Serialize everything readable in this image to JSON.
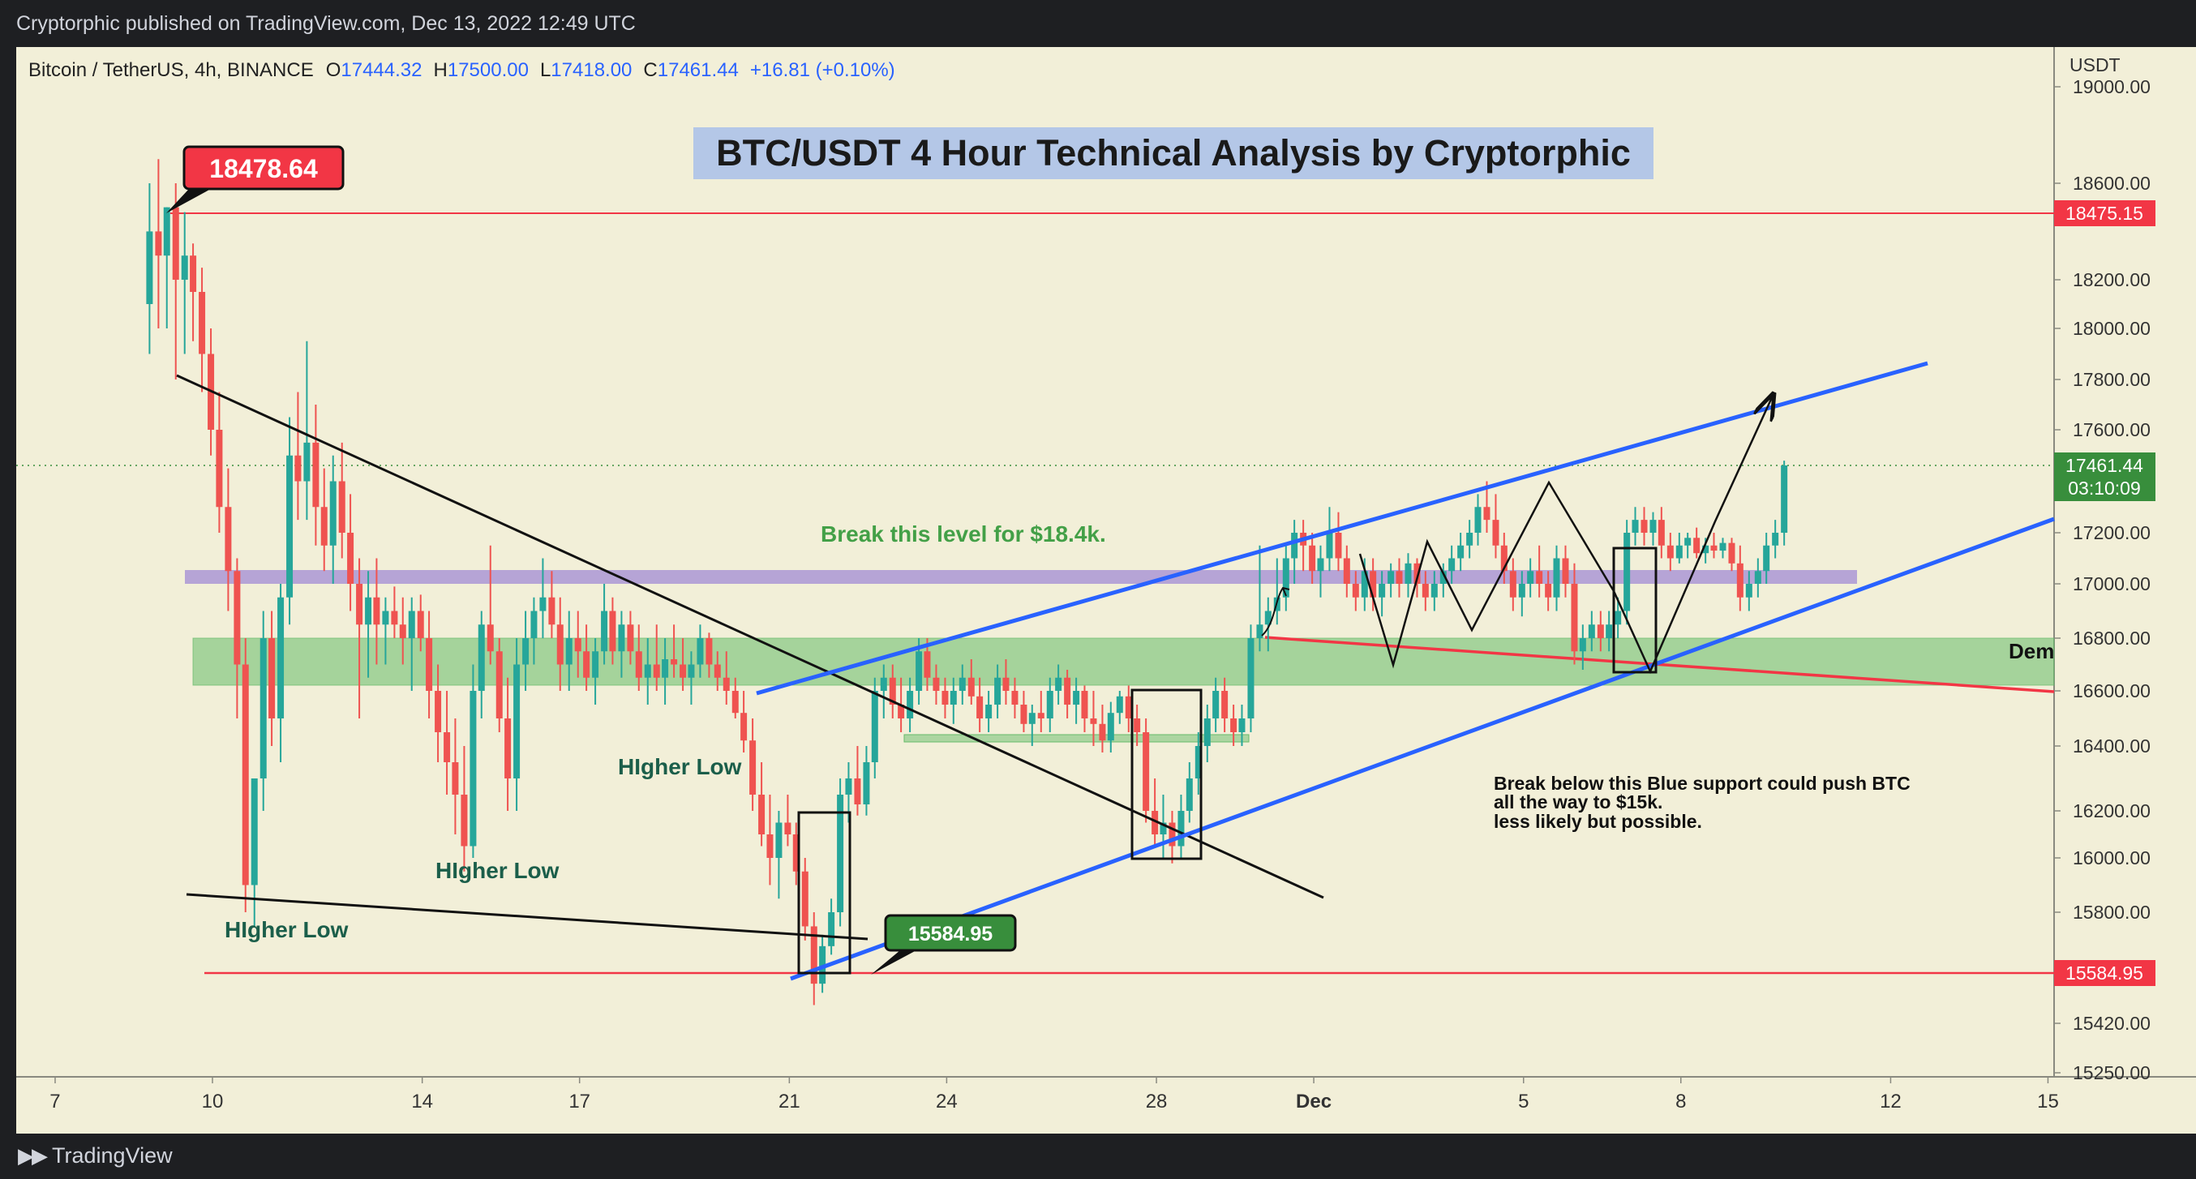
{
  "header": {
    "published": "Cryptorphic published on TradingView.com, Dec 13, 2022 12:49 UTC"
  },
  "footer": {
    "brand": "TradingView"
  },
  "legend": {
    "symbol": "Bitcoin / TetherUS, 4h, BINANCE",
    "o_label": "O",
    "o": "17444.32",
    "h_label": "H",
    "h": "17500.00",
    "l_label": "L",
    "l": "17418.00",
    "c_label": "C",
    "c": "17461.44",
    "change": "+16.81 (+0.10%)"
  },
  "colors": {
    "up": "#26a69a",
    "down": "#ef5350",
    "background": "#f2efd8",
    "blue_line": "#2962ff",
    "red_line": "#f23645",
    "green_zone": "#66bb6a",
    "purple_zone": "#9c84d6"
  },
  "chart_data": {
    "type": "candlestick",
    "title": "BTC/USDT 4 Hour Technical Analysis by Cryptorphic",
    "y_unit": "USDT",
    "ylim": [
      15250,
      19050
    ],
    "y_ticks": [
      "19000.00",
      "18600.00",
      "18200.00",
      "18000.00",
      "17800.00",
      "17600.00",
      "17200.00",
      "17000.00",
      "16800.00",
      "16600.00",
      "16400.00",
      "16200.00",
      "16000.00",
      "15800.00",
      "15420.00",
      "15250.00"
    ],
    "x_ticks": [
      "7",
      "10",
      "14",
      "17",
      "21",
      "24",
      "28",
      "Dec",
      "5",
      "8",
      "12",
      "15"
    ],
    "x_tick_pos": [
      -3,
      0,
      4,
      7,
      11,
      14,
      18,
      21,
      25,
      28,
      32,
      35
    ],
    "xlim": [
      -3.3,
      35.05
    ],
    "price_labels": [
      {
        "value": 18475.15,
        "text": "18475.15",
        "color": "#f23645"
      },
      {
        "value": 17461.44,
        "text": "17461.44",
        "sub": "03:10:09",
        "color": "#388e3c"
      },
      {
        "value": 15584.95,
        "text": "15584.95",
        "color": "#f23645"
      }
    ],
    "callouts": [
      {
        "text": "18478.64",
        "color": "#f23645",
        "x": 0.2,
        "y": 18478.64
      },
      {
        "text": "15584.95",
        "color": "#388e3c",
        "x": 11.9,
        "y": 15584.95
      }
    ],
    "annotations": {
      "break_level": "Break this level for $18.4k.",
      "higher_low_1": "HIgher Low",
      "higher_low_2": "HIgher Low",
      "higher_low_3": "HIgher Low",
      "support_warning_1": "Break below this Blue support could push BTC",
      "support_warning_2": "all the way to $15k.",
      "support_warning_3": "less likely but possible.",
      "demand_zone": "Dem"
    },
    "candles": [
      [
        -1.2,
        18100,
        18600,
        17900,
        18400
      ],
      [
        -1.03,
        18400,
        18700,
        18000,
        18300
      ],
      [
        -0.87,
        18300,
        18500,
        18000,
        18500
      ],
      [
        -0.7,
        18500,
        18600,
        17800,
        18200
      ],
      [
        -0.53,
        18200,
        18480,
        17900,
        18300
      ],
      [
        -0.37,
        18300,
        18350,
        17950,
        18150
      ],
      [
        -0.2,
        18150,
        18250,
        17750,
        17900
      ],
      [
        -0.03,
        17900,
        18000,
        17500,
        17600
      ],
      [
        0.13,
        17600,
        17750,
        17200,
        17300
      ],
      [
        0.3,
        17300,
        17450,
        16900,
        17050
      ],
      [
        0.47,
        17050,
        17100,
        16500,
        16700
      ],
      [
        0.63,
        16700,
        16800,
        15800,
        15900
      ],
      [
        0.8,
        15900,
        16300,
        15750,
        16300
      ],
      [
        0.97,
        16300,
        16900,
        16200,
        16800
      ],
      [
        1.13,
        16800,
        16900,
        16400,
        16500
      ],
      [
        1.3,
        16500,
        17000,
        16350,
        16950
      ],
      [
        1.47,
        16950,
        17650,
        16850,
        17500
      ],
      [
        1.63,
        17500,
        17750,
        17250,
        17400
      ],
      [
        1.8,
        17400,
        17950,
        17250,
        17550
      ],
      [
        1.97,
        17550,
        17700,
        17150,
        17300
      ],
      [
        2.13,
        17300,
        17450,
        17050,
        17150
      ],
      [
        2.3,
        17150,
        17500,
        17000,
        17400
      ],
      [
        2.47,
        17400,
        17550,
        17100,
        17200
      ],
      [
        2.63,
        17200,
        17350,
        16900,
        17000
      ],
      [
        2.8,
        17000,
        17100,
        16500,
        16850
      ],
      [
        2.97,
        16850,
        17050,
        16650,
        16950
      ],
      [
        3.13,
        16950,
        17100,
        16700,
        16850
      ],
      [
        3.3,
        16850,
        16950,
        16700,
        16900
      ],
      [
        3.47,
        16900,
        16990,
        16800,
        16850
      ],
      [
        3.63,
        16850,
        16950,
        16700,
        16800
      ],
      [
        3.8,
        16800,
        16950,
        16600,
        16900
      ],
      [
        3.97,
        16900,
        16960,
        16750,
        16800
      ],
      [
        4.13,
        16800,
        16900,
        16500,
        16600
      ],
      [
        4.3,
        16600,
        16700,
        16350,
        16450
      ],
      [
        4.47,
        16450,
        16600,
        16250,
        16350
      ],
      [
        4.63,
        16350,
        16500,
        16100,
        16250
      ],
      [
        4.8,
        16250,
        16400,
        15950,
        16050
      ],
      [
        4.97,
        16050,
        16700,
        16000,
        16600
      ],
      [
        5.13,
        16600,
        16900,
        16500,
        16850
      ],
      [
        5.3,
        16850,
        17150,
        16700,
        16750
      ],
      [
        5.47,
        16750,
        16800,
        16450,
        16500
      ],
      [
        5.63,
        16500,
        16650,
        16200,
        16300
      ],
      [
        5.8,
        16300,
        16800,
        16200,
        16700
      ],
      [
        5.97,
        16700,
        16900,
        16600,
        16800
      ],
      [
        6.13,
        16800,
        16950,
        16700,
        16900
      ],
      [
        6.3,
        16900,
        17100,
        16800,
        16950
      ],
      [
        6.47,
        16950,
        17050,
        16800,
        16850
      ],
      [
        6.63,
        16850,
        16950,
        16600,
        16700
      ],
      [
        6.8,
        16700,
        16900,
        16600,
        16800
      ],
      [
        6.97,
        16800,
        16900,
        16650,
        16750
      ],
      [
        7.13,
        16750,
        16850,
        16600,
        16650
      ],
      [
        7.3,
        16650,
        16800,
        16550,
        16750
      ],
      [
        7.47,
        16750,
        17000,
        16700,
        16900
      ],
      [
        7.63,
        16900,
        16950,
        16700,
        16750
      ],
      [
        7.8,
        16750,
        16900,
        16650,
        16850
      ],
      [
        7.97,
        16850,
        16900,
        16700,
        16750
      ],
      [
        8.13,
        16750,
        16850,
        16600,
        16650
      ],
      [
        8.3,
        16650,
        16800,
        16550,
        16700
      ],
      [
        8.47,
        16700,
        16850,
        16600,
        16650
      ],
      [
        8.63,
        16650,
        16800,
        16550,
        16720
      ],
      [
        8.8,
        16720,
        16850,
        16650,
        16700
      ],
      [
        8.97,
        16700,
        16800,
        16600,
        16650
      ],
      [
        9.13,
        16650,
        16750,
        16550,
        16700
      ],
      [
        9.3,
        16700,
        16850,
        16650,
        16800
      ],
      [
        9.47,
        16800,
        16820,
        16650,
        16700
      ],
      [
        9.63,
        16700,
        16750,
        16600,
        16650
      ],
      [
        9.8,
        16650,
        16750,
        16550,
        16600
      ],
      [
        9.97,
        16600,
        16650,
        16500,
        16520
      ],
      [
        10.13,
        16520,
        16600,
        16380,
        16420
      ],
      [
        10.3,
        16420,
        16500,
        16200,
        16250
      ],
      [
        10.47,
        16250,
        16350,
        16050,
        16100
      ],
      [
        10.63,
        16100,
        16250,
        15900,
        16000
      ],
      [
        10.8,
        16000,
        16200,
        15850,
        16150
      ],
      [
        10.97,
        16150,
        16250,
        16050,
        16100
      ],
      [
        11.13,
        16100,
        16150,
        15900,
        15950
      ],
      [
        11.3,
        15950,
        16000,
        15700,
        15750
      ],
      [
        11.47,
        15750,
        15800,
        15480,
        15550
      ],
      [
        11.63,
        15550,
        15720,
        15520,
        15680
      ],
      [
        11.8,
        15680,
        15850,
        15650,
        15800
      ],
      [
        11.97,
        15800,
        16300,
        15750,
        16250
      ],
      [
        12.13,
        16250,
        16350,
        16150,
        16300
      ],
      [
        12.3,
        16300,
        16400,
        16180,
        16220
      ],
      [
        12.47,
        16220,
        16400,
        16180,
        16350
      ],
      [
        12.63,
        16350,
        16650,
        16300,
        16600
      ],
      [
        12.8,
        16600,
        16700,
        16500,
        16650
      ],
      [
        12.97,
        16650,
        16700,
        16500,
        16550
      ],
      [
        13.13,
        16550,
        16650,
        16450,
        16500
      ],
      [
        13.3,
        16500,
        16650,
        16450,
        16600
      ],
      [
        13.47,
        16600,
        16800,
        16550,
        16750
      ],
      [
        13.63,
        16750,
        16800,
        16600,
        16650
      ],
      [
        13.8,
        16650,
        16700,
        16550,
        16600
      ],
      [
        13.97,
        16600,
        16650,
        16500,
        16550
      ],
      [
        14.13,
        16550,
        16650,
        16480,
        16600
      ],
      [
        14.3,
        16600,
        16700,
        16550,
        16650
      ],
      [
        14.47,
        16650,
        16720,
        16550,
        16580
      ],
      [
        14.63,
        16580,
        16650,
        16450,
        16500
      ],
      [
        14.8,
        16500,
        16600,
        16450,
        16550
      ],
      [
        14.97,
        16550,
        16700,
        16500,
        16650
      ],
      [
        15.13,
        16650,
        16720,
        16550,
        16600
      ],
      [
        15.3,
        16600,
        16650,
        16500,
        16550
      ],
      [
        15.47,
        16550,
        16600,
        16450,
        16480
      ],
      [
        15.63,
        16480,
        16550,
        16400,
        16520
      ],
      [
        15.8,
        16520,
        16600,
        16450,
        16500
      ],
      [
        15.97,
        16500,
        16650,
        16450,
        16600
      ],
      [
        16.13,
        16600,
        16700,
        16550,
        16650
      ],
      [
        16.3,
        16650,
        16680,
        16500,
        16550
      ],
      [
        16.47,
        16550,
        16650,
        16480,
        16600
      ],
      [
        16.63,
        16600,
        16620,
        16450,
        16500
      ],
      [
        16.8,
        16500,
        16600,
        16400,
        16480
      ],
      [
        16.97,
        16480,
        16550,
        16380,
        16420
      ],
      [
        17.13,
        16420,
        16560,
        16380,
        16520
      ],
      [
        17.3,
        16520,
        16600,
        16480,
        16580
      ],
      [
        17.47,
        16580,
        16620,
        16450,
        16500
      ],
      [
        17.63,
        16500,
        16550,
        16400,
        16450
      ],
      [
        17.8,
        16450,
        16500,
        16150,
        16200
      ],
      [
        17.97,
        16200,
        16300,
        16050,
        16100
      ],
      [
        18.13,
        16100,
        16250,
        16000,
        16150
      ],
      [
        18.3,
        16150,
        16200,
        15980,
        16050
      ],
      [
        18.47,
        16050,
        16250,
        16000,
        16200
      ],
      [
        18.63,
        16200,
        16350,
        16150,
        16300
      ],
      [
        18.8,
        16300,
        16450,
        16250,
        16400
      ],
      [
        18.97,
        16400,
        16550,
        16350,
        16500
      ],
      [
        19.13,
        16500,
        16650,
        16450,
        16600
      ],
      [
        19.3,
        16600,
        16650,
        16450,
        16500
      ],
      [
        19.47,
        16500,
        16550,
        16400,
        16450
      ],
      [
        19.63,
        16450,
        16550,
        16400,
        16500
      ],
      [
        19.8,
        16500,
        16850,
        16450,
        16800
      ],
      [
        19.97,
        16800,
        17150,
        16750,
        16850
      ],
      [
        20.13,
        16850,
        16950,
        16750,
        16900
      ],
      [
        20.3,
        16900,
        17100,
        16850,
        16950
      ],
      [
        20.47,
        16950,
        17150,
        16900,
        17100
      ],
      [
        20.63,
        17100,
        17250,
        17000,
        17200
      ],
      [
        20.8,
        17200,
        17250,
        17050,
        17150
      ],
      [
        20.97,
        17150,
        17200,
        17000,
        17050
      ],
      [
        21.13,
        17050,
        17150,
        16950,
        17100
      ],
      [
        21.3,
        17100,
        17300,
        17050,
        17200
      ],
      [
        21.47,
        17200,
        17280,
        17050,
        17100
      ],
      [
        21.63,
        17100,
        17150,
        16950,
        17000
      ],
      [
        21.8,
        17000,
        17050,
        16900,
        16950
      ],
      [
        21.97,
        16950,
        17100,
        16900,
        17050
      ],
      [
        22.13,
        17050,
        17100,
        16900,
        16950
      ],
      [
        22.3,
        16950,
        17050,
        16880,
        17000
      ],
      [
        22.47,
        17000,
        17080,
        16950,
        17050
      ],
      [
        22.63,
        17050,
        17100,
        16950,
        17000
      ],
      [
        22.8,
        17000,
        17120,
        16950,
        17080
      ],
      [
        22.97,
        17080,
        17100,
        16950,
        17000
      ],
      [
        23.13,
        17000,
        17050,
        16900,
        16950
      ],
      [
        23.3,
        16950,
        17050,
        16900,
        17000
      ],
      [
        23.47,
        17000,
        17080,
        16950,
        17050
      ],
      [
        23.63,
        17050,
        17150,
        17000,
        17100
      ],
      [
        23.8,
        17100,
        17200,
        17050,
        17150
      ],
      [
        23.97,
        17150,
        17250,
        17100,
        17200
      ],
      [
        24.13,
        17200,
        17350,
        17150,
        17300
      ],
      [
        24.3,
        17300,
        17400,
        17200,
        17250
      ],
      [
        24.47,
        17250,
        17350,
        17100,
        17150
      ],
      [
        24.63,
        17150,
        17200,
        17000,
        17050
      ],
      [
        24.8,
        17050,
        17100,
        16900,
        16950
      ],
      [
        24.97,
        16950,
        17050,
        16880,
        17000
      ],
      [
        25.13,
        17000,
        17100,
        16950,
        17050
      ],
      [
        25.3,
        17050,
        17150,
        16950,
        17000
      ],
      [
        25.47,
        17000,
        17050,
        16900,
        16950
      ],
      [
        25.63,
        16950,
        17150,
        16900,
        17100
      ],
      [
        25.8,
        17100,
        17150,
        16950,
        17000
      ],
      [
        25.97,
        17000,
        17080,
        16700,
        16750
      ],
      [
        26.13,
        16750,
        16850,
        16680,
        16800
      ],
      [
        26.3,
        16800,
        16900,
        16750,
        16850
      ],
      [
        26.47,
        16850,
        16900,
        16750,
        16800
      ],
      [
        26.63,
        16800,
        16900,
        16750,
        16850
      ],
      [
        26.8,
        16850,
        16950,
        16800,
        16900
      ],
      [
        26.97,
        16900,
        17250,
        16850,
        17200
      ],
      [
        27.13,
        17200,
        17300,
        17150,
        17250
      ],
      [
        27.3,
        17250,
        17300,
        17150,
        17200
      ],
      [
        27.47,
        17200,
        17280,
        17150,
        17250
      ],
      [
        27.63,
        17250,
        17300,
        17100,
        17150
      ],
      [
        27.8,
        17150,
        17200,
        17050,
        17100
      ],
      [
        27.97,
        17100,
        17200,
        17080,
        17150
      ],
      [
        28.13,
        17150,
        17200,
        17100,
        17180
      ],
      [
        28.3,
        17180,
        17220,
        17100,
        17120
      ],
      [
        28.47,
        17120,
        17180,
        17080,
        17150
      ],
      [
        28.63,
        17150,
        17200,
        17100,
        17130
      ],
      [
        28.8,
        17130,
        17180,
        17100,
        17160
      ],
      [
        28.97,
        17160,
        17180,
        17050,
        17080
      ],
      [
        29.13,
        17080,
        17150,
        16900,
        16950
      ],
      [
        29.3,
        16950,
        17050,
        16900,
        17000
      ],
      [
        29.47,
        17000,
        17100,
        16950,
        17050
      ],
      [
        29.63,
        17050,
        17200,
        17000,
        17150
      ],
      [
        29.8,
        17150,
        17250,
        17100,
        17200
      ],
      [
        29.97,
        17200,
        17480,
        17150,
        17461.44
      ]
    ]
  }
}
